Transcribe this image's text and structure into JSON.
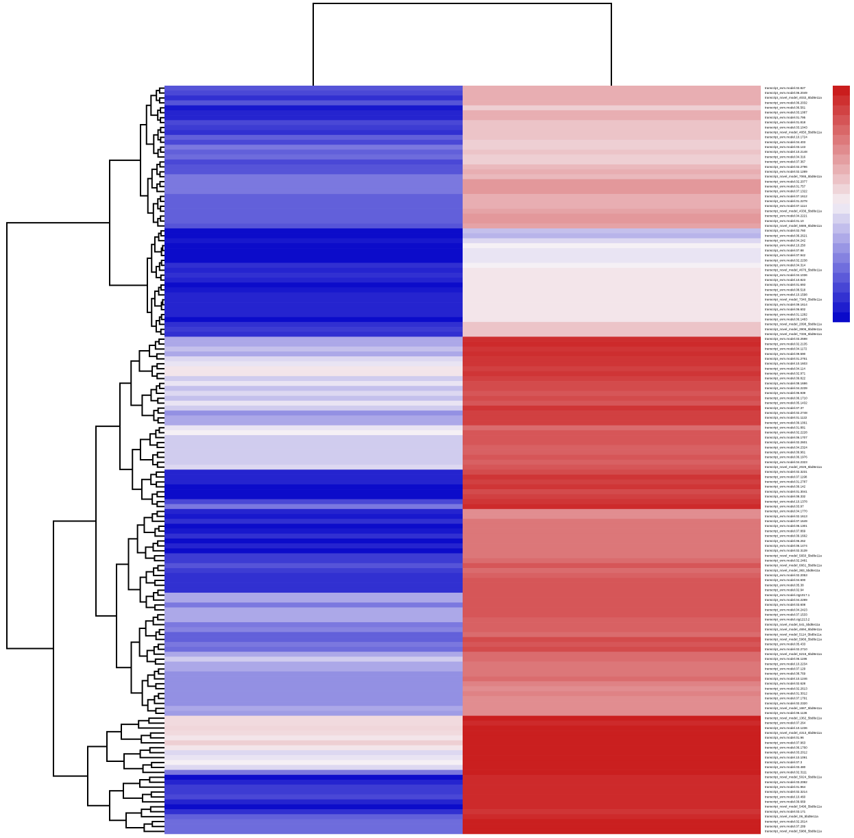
{
  "chart_data": {
    "type": "heatmap",
    "rows": [
      "transcript_evm.model.02.827",
      "transcript_evm.model.06.2049",
      "transcript_novel_model_4032_5bd8e11a",
      "transcript_evm.model.06.2032",
      "transcript_evm.model.06.561",
      "transcript_evm.model.03.1087",
      "transcript_evm.model.01.795",
      "transcript_evm.model.01.818",
      "transcript_evm.model.03.1043",
      "transcript_novel_model_4650_5bd8e11a",
      "transcript_evm.model.10.1724",
      "transcript_evm.model.04.403",
      "transcript_evm.model.03.143",
      "transcript_evm.model.10.2148",
      "transcript_evm.model.04.316",
      "transcript_evm.model.07.367",
      "transcript_evm.model.02.2796",
      "transcript_evm.model.02.1289",
      "transcript_novel_model_7065_5bd8e11a",
      "transcript_evm.model.02.2077",
      "transcript_evm.model.01.757",
      "transcript_evm.model.07.1322",
      "transcript_evm.model.07.1612",
      "transcript_evm.model.01.2278",
      "transcript_evm.model.07.1114",
      "transcript_novel_model_4336_5bd8e11a",
      "transcript_evm.model.04.2221",
      "transcript_evm.model.01.10",
      "transcript_novel_model_5686_5bd8e11a",
      "transcript_evm.model.02.760",
      "transcript_evm.model.06.2621",
      "transcript_evm.model.04.242",
      "transcript_evm.model.10.250",
      "transcript_evm.model.07.88",
      "transcript_evm.model.07.942",
      "transcript_evm.model.02.2238",
      "transcript_evm.model.04.314",
      "transcript_novel_model_4676_5bd8e11a",
      "transcript_evm.model.04.1036",
      "transcript_evm.model.10.823",
      "transcript_evm.model.01.693",
      "transcript_evm.model.08.518",
      "transcript_evm.model.10.1598",
      "transcript_novel_model_7340_5bd8e11a",
      "transcript_evm.model.09.1614",
      "transcript_evm.model.06.602",
      "transcript_evm.model.01.1282",
      "transcript_evm.model.06.1483",
      "transcript_novel_model_2098_5bd8e11a",
      "transcript_novel_model_3906_5bd8e11a",
      "transcript_novel_model_7336_5bd8e11a",
      "transcript_evm.model.03.2598",
      "transcript_evm.model.02.2135",
      "transcript_evm.model.04.1172",
      "transcript_evm.model.09.590",
      "transcript_evm.model.01.2761",
      "transcript_evm.model.10.1603",
      "transcript_evm.model.04.114",
      "transcript_evm.model.02.971",
      "transcript_evm.model.09.822",
      "transcript_evm.model.08.1686",
      "transcript_evm.model.04.2239",
      "transcript_evm.model.05.939",
      "transcript_evm.model.06.1710",
      "transcript_evm.model.05.1432",
      "transcript_evm.model.07.37",
      "transcript_evm.model.02.2748",
      "transcript_evm.model.01.1122",
      "transcript_evm.model.09.1061",
      "transcript_evm.model.01.881",
      "transcript_evm.model.02.2228",
      "transcript_evm.model.06.1707",
      "transcript_evm.model.02.2601",
      "transcript_evm.model.04.2324",
      "transcript_evm.model.09.961",
      "transcript_evm.model.06.1976",
      "transcript_evm.model.04.2323",
      "transcript_novel_model_2026_5bd8e11a",
      "transcript_evm.model.02.3231",
      "transcript_evm.model.07.1198",
      "transcript_evm.model.01.2787",
      "transcript_evm.model.09.142",
      "transcript_evm.model.01.3041",
      "transcript_evm.model.08.332",
      "transcript_evm.model.10.1378",
      "transcript_evm.model.03.97",
      "transcript_evm.model.04.1770",
      "transcript_evm.model.02.1613",
      "transcript_evm.model.07.1649",
      "transcript_evm.model.06.1301",
      "transcript_evm.model.07.869",
      "transcript_evm.model.09.1662",
      "transcript_evm.model.06.262",
      "transcript_evm.model.06.1474",
      "transcript_evm.model.02.3139",
      "transcript_novel_model_5650_5bd8e11a",
      "transcript_evm.model.02.2481",
      "transcript_novel_model_6661_5bd8e11a",
      "transcript_novel_model_383_5bd8e11a",
      "transcript_evm.model.02.2053",
      "transcript_evm.model.04.600",
      "transcript_evm.model.05.38",
      "transcript_evm.model.02.94",
      "transcript_evm.model.ctg1017.1",
      "transcript_evm.model.04.2289",
      "transcript_evm.model.03.608",
      "transcript_evm.model.04.2423",
      "transcript_evm.model.07.1533",
      "transcript_evm.model.ctg1213.2",
      "transcript_novel_model_541_5bd8e11a",
      "transcript_novel_model_4694_5bd8e11a",
      "transcript_novel_model_5114_5bd8e11a",
      "transcript_novel_model_5966_5bd8e11a",
      "transcript_evm.model.05.433",
      "transcript_evm.model.02.2710",
      "transcript_novel_model_6216_5bd8e11a",
      "transcript_evm.model.06.1196",
      "transcript_evm.model.10.2234",
      "transcript_evm.model.07.129",
      "transcript_evm.model.08.769",
      "transcript_evm.model.10.1246",
      "transcript_evm.model.02.628",
      "transcript_evm.model.02.2613",
      "transcript_evm.model.01.3012",
      "transcript_evm.model.07.1791",
      "transcript_evm.model.02.2320",
      "transcript_novel_model_1687_5bd8e11a",
      "transcript_evm.model.06.1136",
      "transcript_novel_model_1362_5bd8e11a",
      "transcript_evm.model.07.264",
      "transcript_evm.model.10.1236",
      "transcript_novel_model_4313_5bd8e11a",
      "transcript_evm.model.01.96",
      "transcript_evm.model.07.963",
      "transcript_evm.model.06.1760",
      "transcript_evm.model.03.2012",
      "transcript_evm.model.10.1091",
      "transcript_evm.model.07.3",
      "transcript_evm.model.03.480",
      "transcript_evm.model.02.3111",
      "transcript_novel_model_5024_5bd8e11a",
      "transcript_evm.model.03.2082",
      "transcript_evm.model.01.964",
      "transcript_evm.model.02.3214",
      "transcript_evm.model.10.460",
      "transcript_evm.model.09.669",
      "transcript_novel_model_5496_5bd8e11a",
      "transcript_evm.model.03.171",
      "transcript_novel_model_06_5bd8e11a",
      "transcript_evm.model.02.2614",
      "transcript_evm.model.07.289",
      "transcript_novel_model_5986_5bd8e11a"
    ],
    "col0": [
      -0.65,
      -0.7,
      -0.8,
      -0.65,
      -0.9,
      -0.85,
      -0.85,
      -0.7,
      -0.75,
      -0.8,
      -0.6,
      -0.7,
      -0.5,
      -0.6,
      -0.55,
      -0.7,
      -0.65,
      -0.65,
      -0.5,
      -0.5,
      -0.5,
      -0.5,
      -0.6,
      -0.6,
      -0.6,
      -0.6,
      -0.6,
      -0.6,
      -0.65,
      -0.95,
      -0.95,
      -0.9,
      -0.95,
      -0.95,
      -0.95,
      -0.95,
      -0.8,
      -0.85,
      -0.8,
      -0.85,
      -0.95,
      -0.9,
      -0.85,
      -0.85,
      -0.85,
      -0.85,
      -0.85,
      -0.95,
      -0.8,
      -0.75,
      -0.8,
      -0.3,
      -0.3,
      -0.2,
      -0.3,
      -0.1,
      -0.05,
      0.05,
      0.05,
      -0.15,
      -0.05,
      -0.2,
      -0.1,
      -0.2,
      -0.05,
      -0.15,
      -0.4,
      -0.3,
      -0.3,
      -0.05,
      0,
      -0.15,
      -0.15,
      -0.15,
      -0.15,
      -0.15,
      -0.15,
      -0.1,
      -0.85,
      -0.85,
      -0.85,
      -0.95,
      -0.95,
      -0.95,
      -0.7,
      -0.5,
      -0.85,
      -0.9,
      -0.8,
      -0.95,
      -0.9,
      -0.8,
      -0.95,
      -0.85,
      -0.95,
      -0.75,
      -0.75,
      -0.65,
      -0.75,
      -0.8,
      -0.8,
      -0.8,
      -0.8,
      -0.3,
      -0.3,
      -0.5,
      -0.3,
      -0.3,
      -0.3,
      -0.5,
      -0.45,
      -0.6,
      -0.6,
      -0.5,
      -0.55,
      -0.3,
      -0.15,
      -0.3,
      -0.3,
      -0.4,
      -0.4,
      -0.4,
      -0.4,
      -0.4,
      -0.4,
      -0.4,
      -0.3,
      -0.35,
      0.1,
      0.1,
      0.12,
      0.1,
      0.05,
      0.15,
      0.05,
      -0.1,
      -0.05,
      0,
      -0.1,
      -0.5,
      -0.95,
      -0.85,
      -0.75,
      -0.75,
      -0.7,
      -0.85,
      -0.95,
      -0.8,
      -0.6,
      -0.55,
      -0.55,
      -0.55
    ],
    "col1": [
      0.3,
      0.3,
      0.3,
      0.3,
      0.15,
      0.3,
      0.3,
      0.2,
      0.2,
      0.2,
      0.2,
      0.15,
      0.15,
      0.2,
      0.15,
      0.15,
      0.25,
      0.3,
      0.25,
      0.4,
      0.4,
      0.4,
      0.3,
      0.3,
      0.3,
      0.35,
      0.4,
      0.4,
      0.35,
      -0.2,
      -0.25,
      -0.1,
      0,
      -0.05,
      -0.05,
      -0.05,
      0,
      0.05,
      0.05,
      0.05,
      0.05,
      0.05,
      0.05,
      0.05,
      0.05,
      0.05,
      0.05,
      0.05,
      0.2,
      0.2,
      0.2,
      0.88,
      0.9,
      0.85,
      0.88,
      0.85,
      0.85,
      0.8,
      0.85,
      0.8,
      0.75,
      0.75,
      0.7,
      0.75,
      0.7,
      0.85,
      0.8,
      0.8,
      0.8,
      0.6,
      0.7,
      0.7,
      0.7,
      0.65,
      0.65,
      0.7,
      0.65,
      0.7,
      0.75,
      0.85,
      0.8,
      0.85,
      0.75,
      0.8,
      0.85,
      0.9,
      0.45,
      0.45,
      0.55,
      0.55,
      0.55,
      0.55,
      0.55,
      0.55,
      0.55,
      0.55,
      0.6,
      0.7,
      0.6,
      0.65,
      0.7,
      0.7,
      0.7,
      0.7,
      0.7,
      0.7,
      0.7,
      0.7,
      0.65,
      0.65,
      0.65,
      0.6,
      0.75,
      0.7,
      0.75,
      0.6,
      0.6,
      0.55,
      0.55,
      0.55,
      0.6,
      0.5,
      0.45,
      0.5,
      0.45,
      0.45,
      0.45,
      0.45,
      0.95,
      0.9,
      0.95,
      0.95,
      0.95,
      0.95,
      0.95,
      0.95,
      0.95,
      0.95,
      0.95,
      0.95,
      0.9,
      0.9,
      0.9,
      0.9,
      0.9,
      0.9,
      0.9,
      0.85,
      0.9,
      0.95,
      0.95,
      0.95
    ],
    "clim": [
      -1,
      1
    ],
    "colors": [
      "#0000c8",
      "#f5f0f5",
      "#c81414"
    ]
  }
}
